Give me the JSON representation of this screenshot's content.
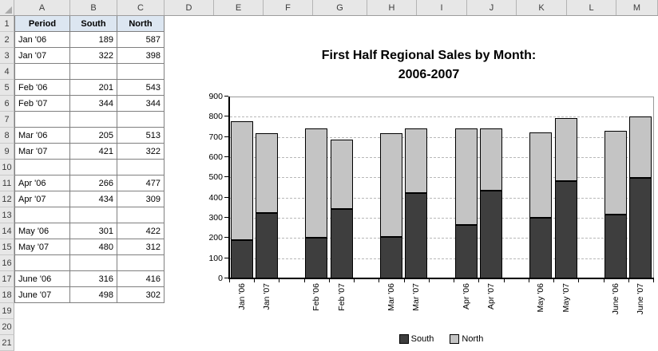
{
  "sheet": {
    "columns": [
      "A",
      "B",
      "C",
      "D",
      "E",
      "F",
      "G",
      "H",
      "I",
      "J",
      "K",
      "L",
      "M"
    ],
    "row_count": 21,
    "table": {
      "headers": [
        "Period",
        "South",
        "North"
      ],
      "entries": [
        {
          "row": 2,
          "period": "Jan '06",
          "south": 189,
          "north": 587
        },
        {
          "row": 3,
          "period": "Jan '07",
          "south": 322,
          "north": 398
        },
        {
          "row": 5,
          "period": "Feb '06",
          "south": 201,
          "north": 543
        },
        {
          "row": 6,
          "period": "Feb '07",
          "south": 344,
          "north": 344
        },
        {
          "row": 8,
          "period": "Mar '06",
          "south": 205,
          "north": 513
        },
        {
          "row": 9,
          "period": "Mar '07",
          "south": 421,
          "north": 322
        },
        {
          "row": 11,
          "period": "Apr '06",
          "south": 266,
          "north": 477
        },
        {
          "row": 12,
          "period": "Apr '07",
          "south": 434,
          "north": 309
        },
        {
          "row": 14,
          "period": "May '06",
          "south": 301,
          "north": 422
        },
        {
          "row": 15,
          "period": "May '07",
          "south": 480,
          "north": 312
        },
        {
          "row": 17,
          "period": "June '06",
          "south": 316,
          "north": 416
        },
        {
          "row": 18,
          "period": "June '07",
          "south": 498,
          "north": 302
        }
      ]
    }
  },
  "chart_data": {
    "type": "bar",
    "stacked": true,
    "title_lines": [
      "First Half Regional Sales by Month:",
      "2006-2007"
    ],
    "categories": [
      "Jan '06",
      "Jan '07",
      "Feb '06",
      "Feb '07",
      "Mar '06",
      "Mar '07",
      "Apr '06",
      "Apr '07",
      "May '06",
      "May '07",
      "June '06",
      "June '07"
    ],
    "series": [
      {
        "name": "South",
        "values": [
          189,
          322,
          201,
          344,
          205,
          421,
          266,
          434,
          301,
          480,
          316,
          498
        ]
      },
      {
        "name": "North",
        "values": [
          587,
          398,
          543,
          344,
          513,
          322,
          477,
          309,
          422,
          312,
          416,
          302
        ]
      }
    ],
    "ylim": [
      0,
      900
    ],
    "ytick_step": 100,
    "grid": "horizontal-dashed",
    "legend_position": "bottom",
    "category_grouping": "pairs-with-gap"
  },
  "colors": {
    "south_fill": "#3E3E3E",
    "north_fill": "#C4C4C4",
    "bar_border": "#000000",
    "header_fill": "#DCE6F1",
    "cell_border": "#7F7F7F",
    "chart_gridline": "#B8B8B8",
    "plot_border": "#999999",
    "axis": "#000000"
  }
}
